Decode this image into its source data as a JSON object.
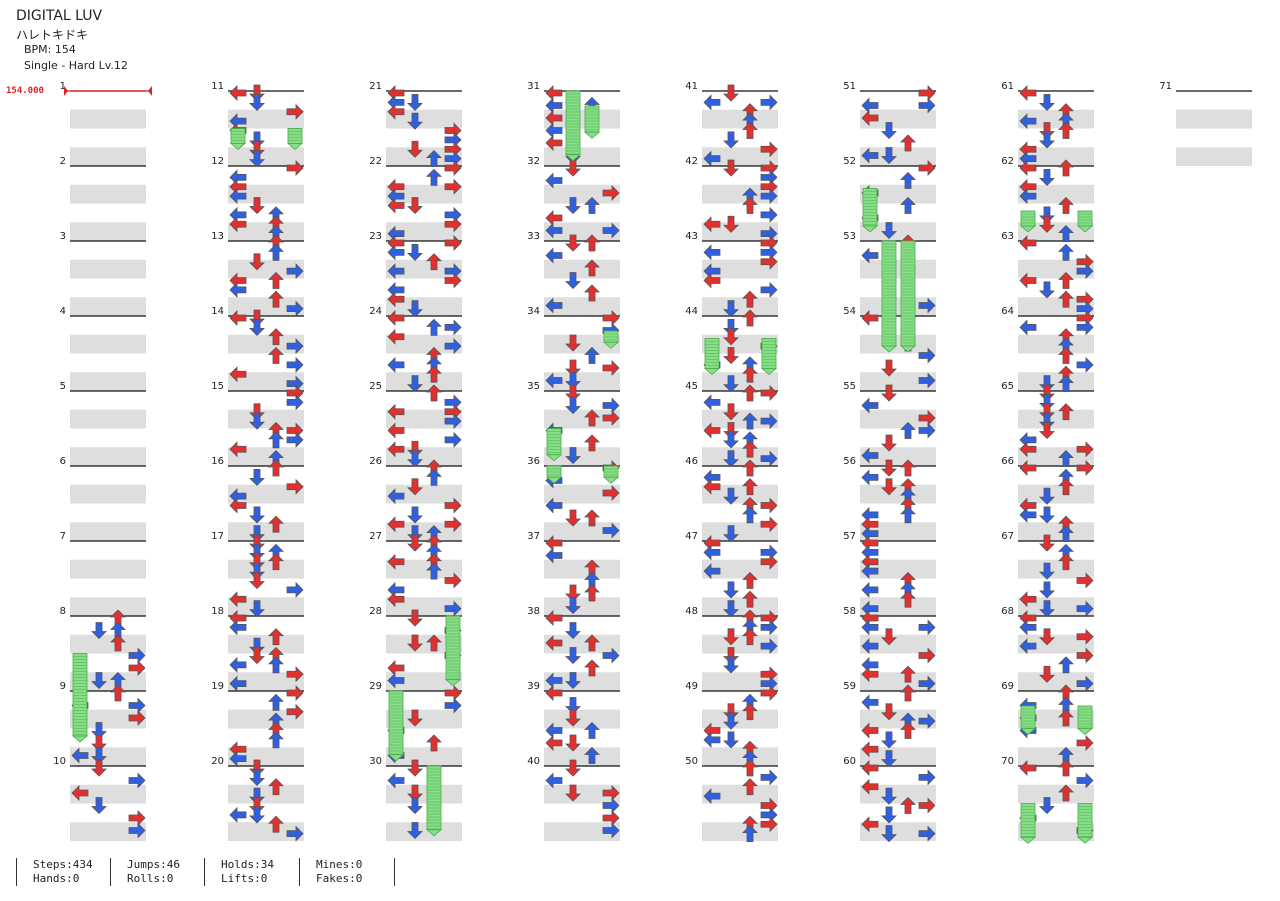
{
  "header": {
    "title": "DIGITAL LUV",
    "subtitle": "ハレトキドキ",
    "bpm": "BPM: 154",
    "level": "Single - Hard  Lv.12",
    "bpm_marker": "154.000"
  },
  "chart_data": {
    "type": "step-chart",
    "measures_shown": 71,
    "columns": 8,
    "measures_per_column": 10,
    "measure_numbers": [
      "1",
      "2",
      "3",
      "4",
      "5",
      "6",
      "7",
      "8",
      "9",
      "10",
      "11",
      "12",
      "13",
      "14",
      "15",
      "16",
      "17",
      "18",
      "19",
      "20",
      "21",
      "22",
      "23",
      "24",
      "25",
      "26",
      "27",
      "28",
      "29",
      "30",
      "31",
      "32",
      "33",
      "34",
      "35",
      "36",
      "37",
      "38",
      "39",
      "40",
      "41",
      "42",
      "43",
      "44",
      "45",
      "46",
      "47",
      "48",
      "49",
      "50",
      "51",
      "52",
      "53",
      "54",
      "55",
      "56",
      "57",
      "58",
      "59",
      "60",
      "61",
      "62",
      "63",
      "64",
      "65",
      "66",
      "67",
      "68",
      "69",
      "70",
      "71"
    ],
    "note_colors": {
      "quarter": "#e03030",
      "eighth": "#3060e0",
      "sixteenth": "#f0e040",
      "hold": "#88dd88"
    },
    "lanes": [
      "left",
      "down",
      "up",
      "right"
    ]
  },
  "stats": {
    "steps": "Steps:434",
    "hands": "Hands:0",
    "jumps": "Jumps:46",
    "rolls": "Rolls:0",
    "holds": "Holds:34",
    "lifts": "Lifts:0",
    "mines": "Mines:0",
    "fakes": "Fakes:0"
  }
}
